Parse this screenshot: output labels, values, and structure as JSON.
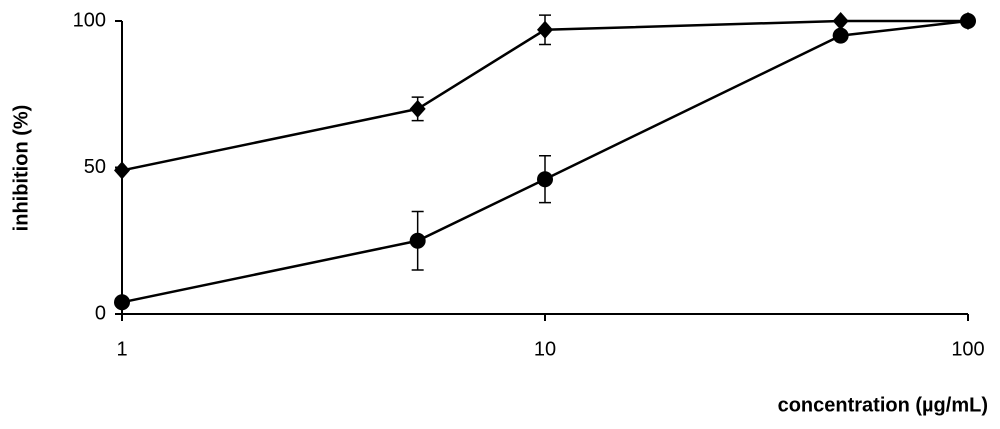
{
  "chart_data": {
    "type": "line",
    "xlabel": "concentration (µg/mL)",
    "ylabel": "inhibition (%)",
    "xscale": "log",
    "x": [
      1,
      5,
      10,
      50,
      100
    ],
    "xlim": [
      1,
      100
    ],
    "xticks": [
      1,
      10,
      100
    ],
    "ylim": [
      0,
      100
    ],
    "yticks": [
      0,
      50,
      100
    ],
    "grid": false,
    "series": [
      {
        "marker": "diamond",
        "color": "#000000",
        "values": [
          49,
          70,
          97,
          100,
          100
        ],
        "errors": [
          0,
          4,
          5,
          0,
          0
        ]
      },
      {
        "marker": "circle",
        "color": "#000000",
        "values": [
          4,
          25,
          46,
          95,
          100
        ],
        "errors": [
          0,
          10,
          8,
          1,
          0
        ]
      }
    ]
  }
}
